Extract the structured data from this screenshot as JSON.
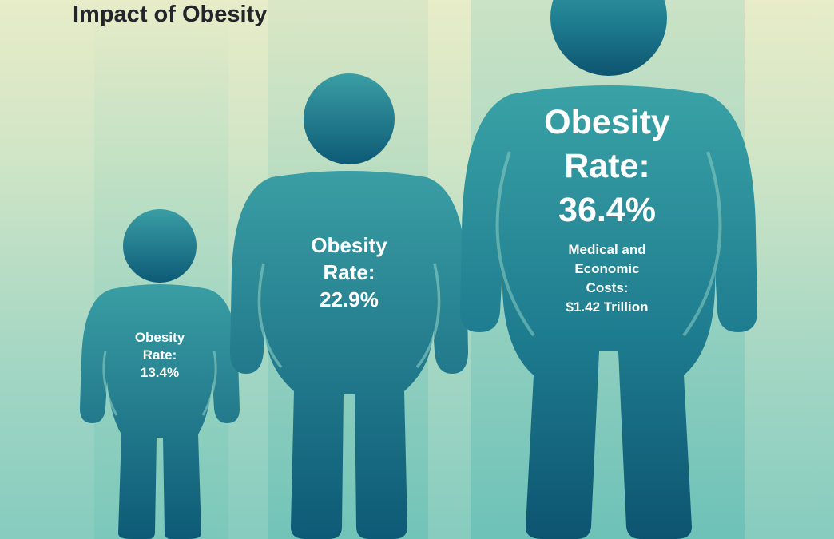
{
  "title": "Impact of Obesity",
  "colors": {
    "figure_top": "#3a9ea4",
    "figure_bottom": "#0d5a76",
    "title_text": "#23252a",
    "label_text": "#ffffff",
    "background_top": "#e8ecc8",
    "background_bottom": "#86ccbf"
  },
  "figures": [
    {
      "label_line1": "Obesity",
      "label_line2": "Rate:",
      "value": "13.4%",
      "obesity_rate_percent": 13.4
    },
    {
      "label_line1": "Obesity",
      "label_line2": "Rate:",
      "value": "22.9%",
      "obesity_rate_percent": 22.9
    },
    {
      "label_line1": "Obesity",
      "label_line2": "Rate:",
      "value": "36.4%",
      "obesity_rate_percent": 36.4,
      "costs_line1": "Medical and",
      "costs_line2": "Economic",
      "costs_line3": "Costs:",
      "costs_line4": "$1.42 Trillion"
    }
  ]
}
